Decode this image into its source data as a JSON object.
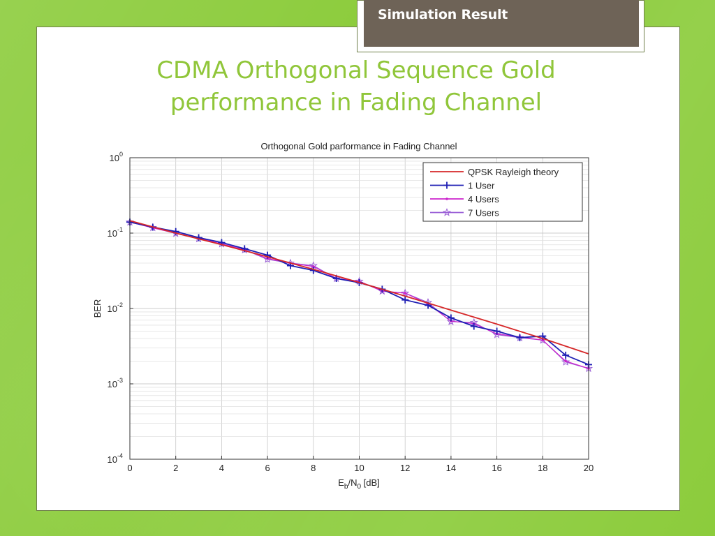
{
  "header": {
    "tab_label": "Simulation Result",
    "title_line1": "CDMA Orthogonal Sequence  Gold",
    "title_line2": "performance in Fading Channel"
  },
  "colors": {
    "background": "#8ccc3c",
    "title": "#90c63a",
    "tab": "#6e6357",
    "theory": "#d62728",
    "user1": "#1f1fb4",
    "users4": "#cc22cc",
    "users7": "#9a5fd6"
  },
  "chart_data": {
    "type": "line",
    "title": "Orthogonal Gold parformance in Fading Channel",
    "xlabel": "Eb/N0 [dB]",
    "ylabel": "BER",
    "xlim": [
      0,
      20
    ],
    "ylim": [
      0.0001,
      1
    ],
    "yscale": "log",
    "xticks": [
      "0",
      "2",
      "4",
      "6",
      "8",
      "10",
      "12",
      "14",
      "16",
      "18",
      "20"
    ],
    "yticks": [
      {
        "base": "10",
        "exp": "0"
      },
      {
        "base": "10",
        "exp": "-1"
      },
      {
        "base": "10",
        "exp": "-2"
      },
      {
        "base": "10",
        "exp": "-3"
      },
      {
        "base": "10",
        "exp": "-4"
      }
    ],
    "grid": true,
    "legend_position": "top-right",
    "series": [
      {
        "name": "QPSK Rayleigh theory",
        "color": "#d62728",
        "marker": "none",
        "x": [
          0,
          2,
          4,
          6,
          8,
          10,
          12,
          14,
          16,
          18,
          20
        ],
        "y": [
          0.146,
          0.1,
          0.0704,
          0.0485,
          0.0331,
          0.0221,
          0.0146,
          0.0095,
          0.0062,
          0.004,
          0.0025
        ]
      },
      {
        "name": "1 User",
        "color": "#1f1fb4",
        "marker": "plus",
        "x": [
          0,
          1,
          2,
          3,
          4,
          5,
          6,
          7,
          8,
          9,
          10,
          11,
          12,
          13,
          14,
          15,
          16,
          17,
          18,
          19,
          20
        ],
        "y": [
          0.14,
          0.12,
          0.105,
          0.087,
          0.075,
          0.062,
          0.051,
          0.037,
          0.032,
          0.025,
          0.022,
          0.018,
          0.013,
          0.011,
          0.0075,
          0.0058,
          0.005,
          0.0041,
          0.0043,
          0.0024,
          0.0018
        ]
      },
      {
        "name": "4 Users",
        "color": "#cc22cc",
        "marker": "dot",
        "x": [
          0,
          1,
          2,
          3,
          4,
          5,
          6,
          7,
          8,
          9,
          10,
          11,
          12,
          13,
          14,
          15,
          16,
          17,
          18,
          19,
          20
        ],
        "y": [
          0.14,
          0.117,
          0.1,
          0.085,
          0.072,
          0.06,
          0.046,
          0.04,
          0.036,
          0.025,
          0.023,
          0.017,
          0.016,
          0.0115,
          0.0068,
          0.0063,
          0.0046,
          0.0042,
          0.0038,
          0.002,
          0.0016
        ]
      },
      {
        "name": "7 Users",
        "color": "#9a5fd6",
        "marker": "star",
        "x": [
          0,
          1,
          2,
          3,
          4,
          5,
          6,
          7,
          8,
          9,
          10,
          11,
          12,
          13,
          14,
          15,
          16,
          17,
          18,
          19,
          20
        ],
        "y": [
          0.14,
          0.118,
          0.099,
          0.084,
          0.072,
          0.06,
          0.045,
          0.04,
          0.037,
          0.025,
          0.023,
          0.017,
          0.016,
          0.012,
          0.0067,
          0.0065,
          0.0045,
          0.0041,
          0.0038,
          0.00195,
          0.0016
        ]
      }
    ]
  }
}
